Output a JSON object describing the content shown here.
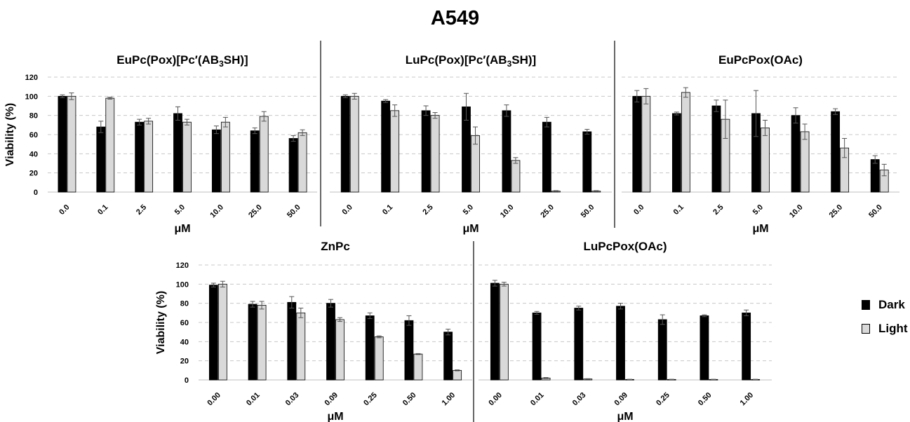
{
  "figure": {
    "title": "A549",
    "legend": [
      {
        "label": "Dark",
        "color": "#000000"
      },
      {
        "label": "Light",
        "color": "#d9d9d9"
      }
    ]
  },
  "chart_data": [
    {
      "type": "bar",
      "title": "EuPc(Pox)[Pc′(AB3SH)]",
      "title_subscript": "3",
      "xlabel": "μM",
      "ylabel": "Viability (%)",
      "ylim": [
        0,
        120
      ],
      "yticks": [
        "0",
        "20",
        "40",
        "60",
        "80",
        "100",
        "120"
      ],
      "grid": true,
      "categories": [
        "0.0",
        "0.1",
        "2.5",
        "5.0",
        "10.0",
        "25.0",
        "50.0"
      ],
      "series": [
        {
          "name": "Dark",
          "values": [
            100,
            68,
            73,
            82,
            65,
            64,
            56
          ],
          "errors": [
            1.5,
            6,
            3,
            7,
            4,
            3,
            3
          ]
        },
        {
          "name": "Light",
          "values": [
            100,
            98,
            74,
            73,
            73,
            79,
            62
          ],
          "errors": [
            3.5,
            1,
            3,
            3,
            5,
            5,
            3
          ]
        }
      ]
    },
    {
      "type": "bar",
      "title": "LuPc(Pox)[Pc′(AB3SH)]",
      "title_subscript": "3",
      "xlabel": "μM",
      "ylabel": "",
      "ylim": [
        0,
        120
      ],
      "yticks": [],
      "grid": true,
      "categories": [
        "0.0",
        "0.1",
        "2.5",
        "5.0",
        "10.0",
        "25.0",
        "50.0"
      ],
      "series": [
        {
          "name": "Dark",
          "values": [
            100,
            95,
            85,
            89,
            85,
            73,
            63
          ],
          "errors": [
            1.5,
            1.5,
            5,
            14,
            6,
            5,
            2.5
          ]
        },
        {
          "name": "Light",
          "values": [
            100,
            85,
            80,
            59,
            33,
            1,
            1
          ],
          "errors": [
            3,
            6,
            3,
            9,
            3,
            0.5,
            0.5
          ]
        }
      ]
    },
    {
      "type": "bar",
      "title": "EuPcPox(OAc)",
      "xlabel": "μM",
      "ylabel": "",
      "ylim": [
        0,
        120
      ],
      "yticks": [],
      "grid": true,
      "categories": [
        "0.0",
        "0.1",
        "2.5",
        "5.0",
        "10.0",
        "25.0",
        "50.0"
      ],
      "series": [
        {
          "name": "Dark",
          "values": [
            100,
            82,
            90,
            82,
            80,
            84,
            34
          ],
          "errors": [
            6,
            1.5,
            6,
            24,
            8,
            3,
            4
          ]
        },
        {
          "name": "Light",
          "values": [
            100,
            104,
            76,
            67,
            63,
            46,
            23
          ],
          "errors": [
            8,
            5,
            20,
            8,
            8,
            10,
            6
          ]
        }
      ]
    },
    {
      "type": "bar",
      "title": "ZnPc",
      "xlabel": "μM",
      "ylabel": "Viability (%)",
      "ylim": [
        0,
        120
      ],
      "yticks": [
        "0",
        "20",
        "40",
        "60",
        "80",
        "100",
        "120"
      ],
      "grid": true,
      "categories": [
        "0.00",
        "0.01",
        "0.03",
        "0.09",
        "0.25",
        "0.50",
        "1.00"
      ],
      "series": [
        {
          "name": "Dark",
          "values": [
            99,
            79,
            81,
            80,
            67,
            62,
            50
          ],
          "errors": [
            2,
            3,
            6,
            4,
            3,
            5,
            3
          ]
        },
        {
          "name": "Light",
          "values": [
            100,
            78,
            70,
            63,
            45,
            27,
            10
          ],
          "errors": [
            3,
            4,
            5,
            2,
            1,
            0.5,
            0.5
          ]
        }
      ]
    },
    {
      "type": "bar",
      "title": "LuPcPox(OAc)",
      "xlabel": "μM",
      "ylabel": "",
      "ylim": [
        0,
        120
      ],
      "yticks": [],
      "grid": true,
      "categories": [
        "0.00",
        "0.01",
        "0.03",
        "0.09",
        "0.25",
        "0.50",
        "1.00"
      ],
      "series": [
        {
          "name": "Dark",
          "values": [
            101,
            70,
            75,
            77,
            63,
            67,
            70
          ],
          "errors": [
            3,
            1.5,
            2,
            3,
            5,
            1,
            3
          ]
        },
        {
          "name": "Light",
          "values": [
            100,
            2,
            1,
            0.5,
            0.5,
            0.5,
            0.5
          ],
          "errors": [
            2,
            0.5,
            0.3,
            0.2,
            0.2,
            0.2,
            0.2
          ]
        }
      ]
    }
  ]
}
